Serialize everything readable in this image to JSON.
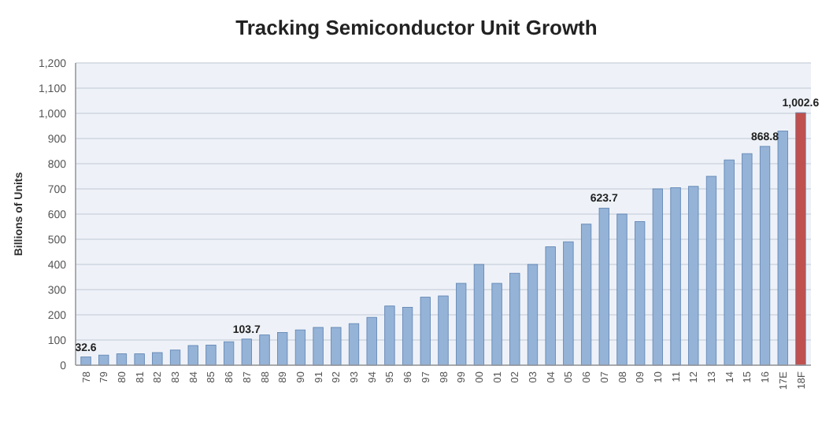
{
  "chart_data": {
    "type": "bar",
    "title": "Tracking Semiconductor Unit Growth",
    "ylabel": "Billions of Units",
    "categories": [
      "78",
      "79",
      "80",
      "81",
      "82",
      "83",
      "84",
      "85",
      "86",
      "87",
      "88",
      "89",
      "90",
      "91",
      "92",
      "93",
      "94",
      "95",
      "96",
      "97",
      "98",
      "99",
      "00",
      "01",
      "02",
      "03",
      "04",
      "05",
      "06",
      "07",
      "08",
      "09",
      "10",
      "11",
      "12",
      "13",
      "14",
      "15",
      "16",
      "17E",
      "18F"
    ],
    "values": [
      32.6,
      40,
      45,
      45,
      50,
      60,
      78,
      80,
      93,
      103.7,
      120,
      130,
      140,
      150,
      150,
      165,
      190,
      235,
      230,
      270,
      275,
      325,
      400,
      325,
      365,
      400,
      470,
      490,
      560,
      623.7,
      600,
      570,
      700,
      705,
      710,
      750,
      815,
      840,
      868.8,
      930,
      1002.6
    ],
    "value_labels": [
      "32.6",
      null,
      null,
      null,
      null,
      null,
      null,
      null,
      null,
      "103.7",
      null,
      null,
      null,
      null,
      null,
      null,
      null,
      null,
      null,
      null,
      null,
      null,
      null,
      null,
      null,
      null,
      null,
      null,
      null,
      "623.7",
      null,
      null,
      null,
      null,
      null,
      null,
      null,
      null,
      "868.8",
      null,
      "1,002.6"
    ],
    "colors": [
      "#95b3d7",
      "#95b3d7",
      "#95b3d7",
      "#95b3d7",
      "#95b3d7",
      "#95b3d7",
      "#95b3d7",
      "#95b3d7",
      "#95b3d7",
      "#95b3d7",
      "#95b3d7",
      "#95b3d7",
      "#95b3d7",
      "#95b3d7",
      "#95b3d7",
      "#95b3d7",
      "#95b3d7",
      "#95b3d7",
      "#95b3d7",
      "#95b3d7",
      "#95b3d7",
      "#95b3d7",
      "#95b3d7",
      "#95b3d7",
      "#95b3d7",
      "#95b3d7",
      "#95b3d7",
      "#95b3d7",
      "#95b3d7",
      "#95b3d7",
      "#95b3d7",
      "#95b3d7",
      "#95b3d7",
      "#95b3d7",
      "#95b3d7",
      "#95b3d7",
      "#95b3d7",
      "#95b3d7",
      "#95b3d7",
      "#95b3d7",
      "#c0504d"
    ],
    "ylim": [
      0,
      1200
    ],
    "yticks": [
      0,
      100,
      200,
      300,
      400,
      500,
      600,
      700,
      800,
      900,
      {
        "value": 1000,
        "label": "1,000"
      },
      {
        "value": 1100,
        "label": "1,100"
      },
      {
        "value": 1200,
        "label": "1,200"
      }
    ],
    "grid": "y"
  }
}
